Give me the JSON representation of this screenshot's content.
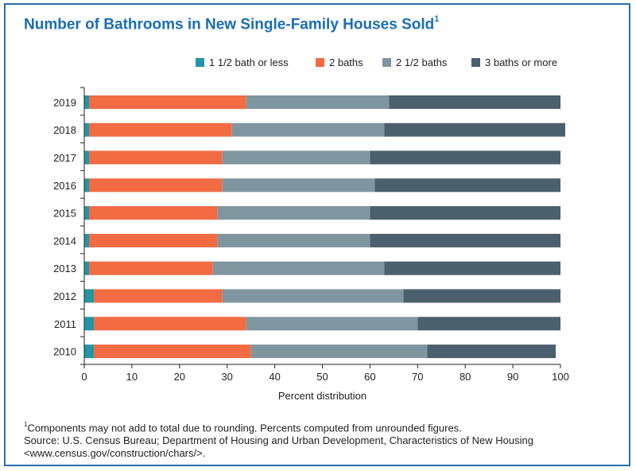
{
  "title": "Number of Bathrooms in New Single-Family Houses Sold",
  "title_footnote_mark": "1",
  "footnote_mark": "1",
  "footnote_text": "Components may not add to total due to rounding. Percents computed from unrounded figures.",
  "source_line1": "Source: U.S. Census Bureau; Department of Housing and Urban Development, Characteristics of New Housing",
  "source_line2": "<www.census.gov/construction/chars/>.",
  "colors": {
    "frame": "#2a6ea8",
    "title": "#1a6eb4",
    "axis": "#222222"
  },
  "chart_data": {
    "type": "bar",
    "orientation": "horizontal",
    "stacked": true,
    "categories": [
      "2019",
      "2018",
      "2017",
      "2016",
      "2015",
      "2014",
      "2013",
      "2012",
      "2011",
      "2010"
    ],
    "series": [
      {
        "name": "1 1/2 bath or less",
        "color": "#2196a6",
        "values": [
          1,
          1,
          1,
          1,
          1,
          1,
          1,
          2,
          2,
          2
        ]
      },
      {
        "name": "2 baths",
        "color": "#f26b43",
        "values": [
          33,
          30,
          28,
          28,
          27,
          27,
          26,
          27,
          32,
          33
        ]
      },
      {
        "name": "2 1/2 baths",
        "color": "#7f96a0",
        "values": [
          30,
          32,
          31,
          32,
          32,
          32,
          36,
          38,
          36,
          37
        ]
      },
      {
        "name": "3 baths or more",
        "color": "#4b5f6c",
        "values": [
          36,
          38,
          40,
          39,
          40,
          40,
          37,
          33,
          30,
          27
        ]
      }
    ],
    "xlabel": "Percent distribution",
    "ylabel": "",
    "xlim": [
      0,
      100
    ],
    "xticks": [
      0,
      10,
      20,
      30,
      40,
      50,
      60,
      70,
      80,
      90,
      100
    ],
    "grid": false,
    "legend_position": "top-right"
  }
}
